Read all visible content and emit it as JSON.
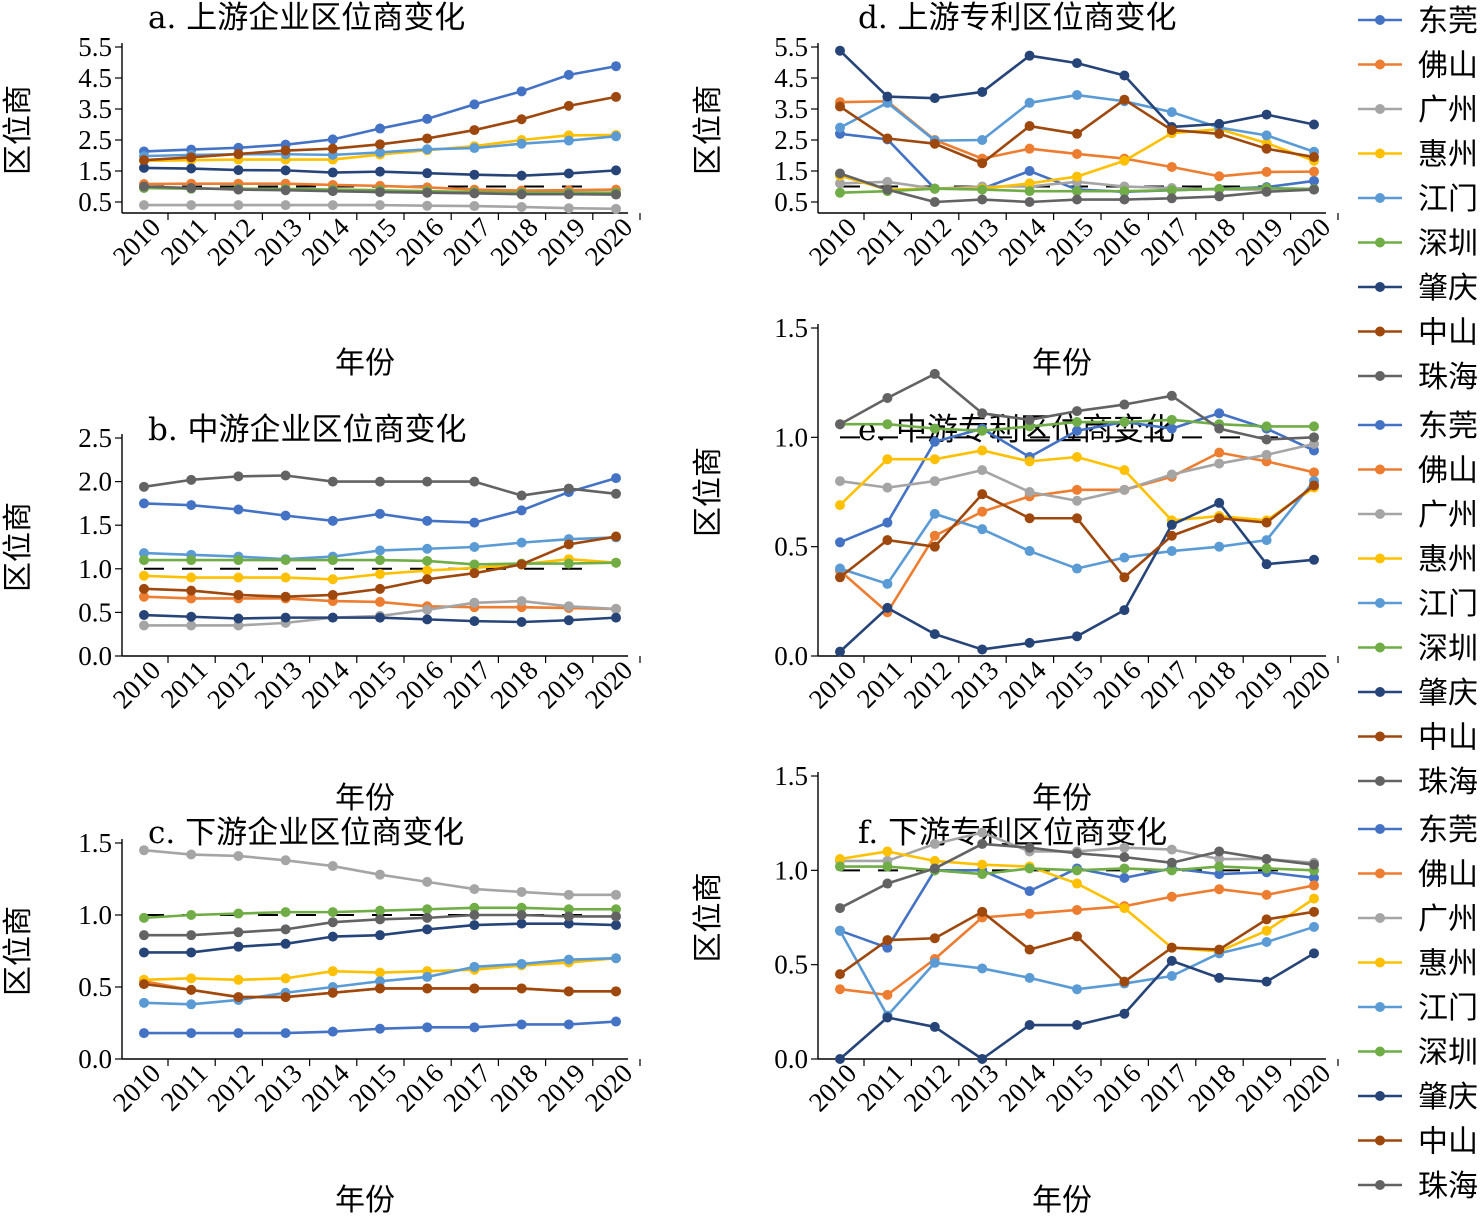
{
  "chart_data": [
    {
      "type": "line",
      "title": "a. 上游企业区位商变化",
      "xlabel": "年份",
      "ylabel": "区位商",
      "ylim": [
        0,
        5.5
      ],
      "yticks": [
        "0.5",
        "1.5",
        "2.5",
        "3.5",
        "4.5",
        "5.5"
      ],
      "x": [
        "2010",
        "2011",
        "2012",
        "2013",
        "2014",
        "2015",
        "2016",
        "2017",
        "2018",
        "2019",
        "2020"
      ],
      "reference_y": 1.0,
      "series": [
        {
          "name": "东莞",
          "values": [
            2.13,
            2.19,
            2.25,
            2.35,
            2.52,
            2.87,
            3.18,
            3.65,
            4.07,
            4.6,
            4.88
          ]
        },
        {
          "name": "佛山",
          "values": [
            1.08,
            1.09,
            1.09,
            1.09,
            1.05,
            1.02,
            0.97,
            0.9,
            0.87,
            0.88,
            0.9
          ]
        },
        {
          "name": "广州",
          "values": [
            0.4,
            0.4,
            0.4,
            0.4,
            0.4,
            0.4,
            0.38,
            0.37,
            0.34,
            0.3,
            0.28
          ]
        },
        {
          "name": "惠州",
          "values": [
            1.83,
            1.85,
            1.87,
            1.87,
            1.87,
            2.03,
            2.17,
            2.3,
            2.5,
            2.65,
            2.66
          ]
        },
        {
          "name": "江门",
          "values": [
            1.98,
            2.02,
            2.04,
            2.04,
            2.02,
            2.1,
            2.2,
            2.24,
            2.38,
            2.48,
            2.62
          ]
        },
        {
          "name": "深圳",
          "values": [
            0.95,
            0.93,
            0.93,
            0.92,
            0.9,
            0.88,
            0.85,
            0.82,
            0.8,
            0.8,
            0.8
          ]
        },
        {
          "name": "肇庆",
          "values": [
            1.6,
            1.58,
            1.53,
            1.52,
            1.45,
            1.48,
            1.43,
            1.38,
            1.35,
            1.42,
            1.52
          ]
        },
        {
          "name": "中山",
          "values": [
            1.85,
            1.94,
            2.05,
            2.16,
            2.22,
            2.36,
            2.55,
            2.82,
            3.17,
            3.6,
            3.89
          ]
        },
        {
          "name": "珠海",
          "values": [
            1.0,
            0.95,
            0.9,
            0.88,
            0.85,
            0.82,
            0.8,
            0.78,
            0.75,
            0.75,
            0.74
          ]
        }
      ]
    },
    {
      "type": "line",
      "title": "b. 中游企业区位商变化",
      "xlabel": "年份",
      "ylabel": "区位商",
      "ylim": [
        0,
        2.5
      ],
      "yticks": [
        "0.0",
        "0.5",
        "1.0",
        "1.5",
        "2.0",
        "2.5"
      ],
      "x": [
        "2010",
        "2011",
        "2012",
        "2013",
        "2014",
        "2015",
        "2016",
        "2017",
        "2018",
        "2019",
        "2020"
      ],
      "reference_y": 1.0,
      "series": [
        {
          "name": "东莞",
          "values": [
            1.75,
            1.73,
            1.68,
            1.61,
            1.55,
            1.63,
            1.55,
            1.53,
            1.67,
            1.88,
            2.04
          ]
        },
        {
          "name": "佛山",
          "values": [
            0.68,
            0.66,
            0.66,
            0.66,
            0.63,
            0.62,
            0.57,
            0.56,
            0.56,
            0.55,
            0.54
          ]
        },
        {
          "name": "广州",
          "values": [
            0.35,
            0.35,
            0.35,
            0.38,
            0.44,
            0.46,
            0.53,
            0.61,
            0.63,
            0.57,
            0.54
          ]
        },
        {
          "name": "惠州",
          "values": [
            0.92,
            0.9,
            0.9,
            0.9,
            0.88,
            0.94,
            0.98,
            1.01,
            1.05,
            1.11,
            1.07
          ]
        },
        {
          "name": "江门",
          "values": [
            1.18,
            1.16,
            1.14,
            1.11,
            1.14,
            1.21,
            1.23,
            1.25,
            1.3,
            1.34,
            1.36
          ]
        },
        {
          "name": "深圳",
          "values": [
            1.1,
            1.1,
            1.1,
            1.1,
            1.1,
            1.1,
            1.09,
            1.05,
            1.06,
            1.06,
            1.07
          ]
        },
        {
          "name": "肇庆",
          "values": [
            0.47,
            0.45,
            0.43,
            0.44,
            0.44,
            0.44,
            0.42,
            0.4,
            0.39,
            0.41,
            0.44
          ]
        },
        {
          "name": "中山",
          "values": [
            0.77,
            0.75,
            0.7,
            0.68,
            0.7,
            0.77,
            0.88,
            0.95,
            1.05,
            1.28,
            1.37
          ]
        },
        {
          "name": "珠海",
          "values": [
            1.94,
            2.02,
            2.06,
            2.07,
            2.0,
            2.0,
            2.0,
            2.0,
            1.84,
            1.92,
            1.86
          ]
        }
      ]
    },
    {
      "type": "line",
      "title": "c. 下游企业区位商变化",
      "xlabel": "年份",
      "ylabel": "区位商",
      "ylim": [
        0,
        1.5
      ],
      "yticks": [
        "0.0",
        "0.5",
        "1.0",
        "1.5"
      ],
      "x": [
        "2010",
        "2011",
        "2012",
        "2013",
        "2014",
        "2015",
        "2016",
        "2017",
        "2018",
        "2019",
        "2020"
      ],
      "reference_y": 1.0,
      "series": [
        {
          "name": "东莞",
          "values": [
            0.18,
            0.18,
            0.18,
            0.18,
            0.19,
            0.21,
            0.22,
            0.22,
            0.24,
            0.24,
            0.26
          ]
        },
        {
          "name": "佛山",
          "values": [
            0.54,
            0.48,
            0.43,
            0.43,
            0.46,
            0.49,
            0.49,
            0.49,
            0.49,
            0.47,
            0.47
          ]
        },
        {
          "name": "广州",
          "values": [
            1.45,
            1.42,
            1.41,
            1.38,
            1.34,
            1.28,
            1.23,
            1.18,
            1.16,
            1.14,
            1.14
          ]
        },
        {
          "name": "惠州",
          "values": [
            0.55,
            0.56,
            0.55,
            0.56,
            0.61,
            0.6,
            0.61,
            0.62,
            0.65,
            0.67,
            0.7
          ]
        },
        {
          "name": "江门",
          "values": [
            0.39,
            0.38,
            0.41,
            0.46,
            0.5,
            0.54,
            0.57,
            0.64,
            0.66,
            0.69,
            0.7
          ]
        },
        {
          "name": "深圳",
          "values": [
            0.98,
            1.0,
            1.01,
            1.02,
            1.02,
            1.03,
            1.04,
            1.05,
            1.05,
            1.04,
            1.04
          ]
        },
        {
          "name": "肇庆",
          "values": [
            0.74,
            0.74,
            0.78,
            0.8,
            0.85,
            0.86,
            0.9,
            0.93,
            0.94,
            0.94,
            0.93
          ]
        },
        {
          "name": "中山",
          "values": [
            0.52,
            0.48,
            0.43,
            0.43,
            0.46,
            0.49,
            0.49,
            0.49,
            0.49,
            0.47,
            0.47
          ]
        },
        {
          "name": "珠海",
          "values": [
            0.86,
            0.86,
            0.88,
            0.9,
            0.95,
            0.97,
            0.98,
            1.0,
            1.0,
            0.99,
            0.99
          ]
        }
      ]
    },
    {
      "type": "line",
      "title": "d. 上游专利区位商变化",
      "xlabel": "年份",
      "ylabel": "区位商",
      "ylim": [
        0,
        5.5
      ],
      "yticks": [
        "0.5",
        "1.5",
        "2.5",
        "3.5",
        "4.5",
        "5.5"
      ],
      "x": [
        "2010",
        "2011",
        "2012",
        "2013",
        "2014",
        "2015",
        "2016",
        "2017",
        "2018",
        "2019",
        "2020"
      ],
      "reference_y": 1.0,
      "series": [
        {
          "name": "东莞",
          "values": [
            2.7,
            2.52,
            0.93,
            0.93,
            1.5,
            0.9,
            0.83,
            0.88,
            0.92,
            0.98,
            1.18
          ]
        },
        {
          "name": "佛山",
          "values": [
            3.72,
            3.75,
            2.5,
            1.9,
            2.22,
            2.05,
            1.9,
            1.63,
            1.33,
            1.47,
            1.48
          ]
        },
        {
          "name": "广州",
          "values": [
            1.1,
            1.15,
            0.93,
            1.0,
            1.0,
            1.15,
            1.0,
            0.95,
            0.9,
            0.9,
            0.9
          ]
        },
        {
          "name": "惠州",
          "values": [
            1.35,
            0.9,
            0.93,
            0.93,
            1.1,
            1.32,
            1.83,
            2.72,
            2.85,
            2.4,
            1.83
          ]
        },
        {
          "name": "江门",
          "values": [
            2.9,
            3.7,
            2.48,
            2.5,
            3.7,
            3.95,
            3.75,
            3.4,
            2.9,
            2.65,
            2.12
          ]
        },
        {
          "name": "深圳",
          "values": [
            0.8,
            0.85,
            0.93,
            0.9,
            0.85,
            0.85,
            0.85,
            0.88,
            0.92,
            0.95,
            0.92
          ]
        },
        {
          "name": "肇庆",
          "values": [
            5.38,
            3.9,
            3.85,
            4.05,
            5.22,
            4.98,
            4.58,
            2.92,
            3.02,
            3.32,
            3.0
          ]
        },
        {
          "name": "中山",
          "values": [
            3.58,
            2.55,
            2.38,
            1.75,
            2.95,
            2.7,
            3.8,
            2.82,
            2.7,
            2.22,
            1.95
          ]
        },
        {
          "name": "珠海",
          "values": [
            1.42,
            0.9,
            0.5,
            0.58,
            0.5,
            0.58,
            0.58,
            0.62,
            0.68,
            0.83,
            0.9
          ]
        }
      ]
    },
    {
      "type": "line",
      "title": "e. 中游专利区位商变化",
      "xlabel": "年份",
      "ylabel": "区位商",
      "ylim": [
        0,
        1.5
      ],
      "yticks": [
        "0.0",
        "0.5",
        "1.0",
        "1.5"
      ],
      "x": [
        "2010",
        "2011",
        "2012",
        "2013",
        "2014",
        "2015",
        "2016",
        "2017",
        "2018",
        "2019",
        "2020"
      ],
      "reference_y": 1.0,
      "series": [
        {
          "name": "东莞",
          "values": [
            0.52,
            0.61,
            0.98,
            1.04,
            0.91,
            1.03,
            1.07,
            1.04,
            1.11,
            1.04,
            0.94
          ]
        },
        {
          "name": "佛山",
          "values": [
            0.39,
            0.2,
            0.55,
            0.66,
            0.73,
            0.76,
            0.76,
            0.82,
            0.93,
            0.89,
            0.84
          ]
        },
        {
          "name": "广州",
          "values": [
            0.8,
            0.77,
            0.8,
            0.85,
            0.75,
            0.71,
            0.76,
            0.83,
            0.88,
            0.92,
            0.97
          ]
        },
        {
          "name": "惠州",
          "values": [
            0.69,
            0.9,
            0.9,
            0.94,
            0.89,
            0.91,
            0.85,
            0.62,
            0.64,
            0.62,
            0.77
          ]
        },
        {
          "name": "江门",
          "values": [
            0.4,
            0.33,
            0.65,
            0.58,
            0.48,
            0.4,
            0.45,
            0.48,
            0.5,
            0.53,
            0.8
          ]
        },
        {
          "name": "深圳",
          "values": [
            1.06,
            1.06,
            1.04,
            1.03,
            1.05,
            1.07,
            1.07,
            1.08,
            1.06,
            1.05,
            1.05
          ]
        },
        {
          "name": "肇庆",
          "values": [
            0.02,
            0.22,
            0.1,
            0.03,
            0.06,
            0.09,
            0.21,
            0.6,
            0.7,
            0.42,
            0.44
          ]
        },
        {
          "name": "中山",
          "values": [
            0.36,
            0.53,
            0.5,
            0.74,
            0.63,
            0.63,
            0.36,
            0.55,
            0.63,
            0.61,
            0.78
          ]
        },
        {
          "name": "珠海",
          "values": [
            1.06,
            1.18,
            1.29,
            1.11,
            1.08,
            1.12,
            1.15,
            1.19,
            1.04,
            0.99,
            1.0
          ]
        }
      ]
    },
    {
      "type": "line",
      "title": "f. 下游专利区位商变化",
      "xlabel": "年份",
      "ylabel": "区位商",
      "ylim": [
        0,
        1.5
      ],
      "yticks": [
        "0.0",
        "0.5",
        "1.0",
        "1.5"
      ],
      "x": [
        "2010",
        "2011",
        "2012",
        "2013",
        "2014",
        "2015",
        "2016",
        "2017",
        "2018",
        "2019",
        "2020"
      ],
      "reference_y": 1.0,
      "series": [
        {
          "name": "东莞",
          "values": [
            0.68,
            0.59,
            1.0,
            1.0,
            0.89,
            1.01,
            0.96,
            1.01,
            0.98,
            0.99,
            0.96
          ]
        },
        {
          "name": "佛山",
          "values": [
            0.37,
            0.34,
            0.53,
            0.75,
            0.77,
            0.79,
            0.81,
            0.86,
            0.9,
            0.87,
            0.92
          ]
        },
        {
          "name": "广州",
          "values": [
            1.05,
            1.05,
            1.14,
            1.2,
            1.1,
            1.1,
            1.12,
            1.11,
            1.06,
            1.06,
            1.04
          ]
        },
        {
          "name": "惠州",
          "values": [
            1.06,
            1.1,
            1.05,
            1.03,
            1.02,
            0.93,
            0.8,
            0.59,
            0.57,
            0.68,
            0.85
          ]
        },
        {
          "name": "江门",
          "values": [
            0.68,
            0.23,
            0.51,
            0.48,
            0.43,
            0.37,
            0.4,
            0.44,
            0.56,
            0.62,
            0.7
          ]
        },
        {
          "name": "深圳",
          "values": [
            1.02,
            1.02,
            1.0,
            0.98,
            1.01,
            1.0,
            1.01,
            1.0,
            1.02,
            1.01,
            1.0
          ]
        },
        {
          "name": "肇庆",
          "values": [
            0.0,
            0.22,
            0.17,
            0.0,
            0.18,
            0.18,
            0.24,
            0.52,
            0.43,
            0.41,
            0.56
          ]
        },
        {
          "name": "中山",
          "values": [
            0.45,
            0.63,
            0.64,
            0.78,
            0.58,
            0.65,
            0.41,
            0.59,
            0.58,
            0.74,
            0.78
          ]
        },
        {
          "name": "珠海",
          "values": [
            0.8,
            0.93,
            1.01,
            1.14,
            1.12,
            1.09,
            1.07,
            1.04,
            1.1,
            1.06,
            1.03
          ]
        }
      ]
    }
  ],
  "legend": [
    "东莞",
    "佛山",
    "广州",
    "惠州",
    "江门",
    "深圳",
    "肇庆",
    "中山",
    "珠海"
  ],
  "series_colors": [
    "#4472c4",
    "#ed7d31",
    "#a5a5a5",
    "#ffc000",
    "#5b9bd5",
    "#70ad47",
    "#264478",
    "#9e480e",
    "#636363"
  ]
}
